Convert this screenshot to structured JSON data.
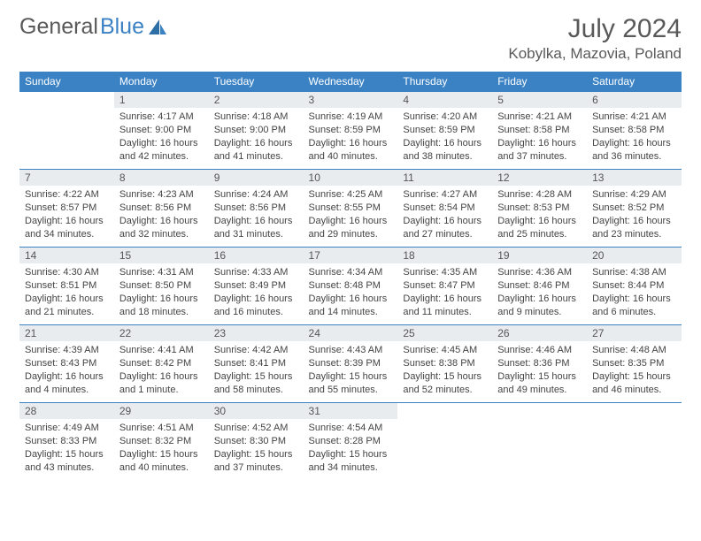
{
  "brand": {
    "word1": "General",
    "word2": "Blue"
  },
  "colors": {
    "header_bg": "#3b82c4",
    "header_text": "#ffffff",
    "daynum_bg": "#e9ecef",
    "border": "#3b82c4",
    "body_text": "#444444",
    "title_text": "#595959"
  },
  "title": "July 2024",
  "location": "Kobylka, Mazovia, Poland",
  "weekdays": [
    "Sunday",
    "Monday",
    "Tuesday",
    "Wednesday",
    "Thursday",
    "Friday",
    "Saturday"
  ],
  "first_weekday_index": 1,
  "days": [
    {
      "n": 1,
      "sunrise": "4:17 AM",
      "sunset": "9:00 PM",
      "daylight": "16 hours and 42 minutes."
    },
    {
      "n": 2,
      "sunrise": "4:18 AM",
      "sunset": "9:00 PM",
      "daylight": "16 hours and 41 minutes."
    },
    {
      "n": 3,
      "sunrise": "4:19 AM",
      "sunset": "8:59 PM",
      "daylight": "16 hours and 40 minutes."
    },
    {
      "n": 4,
      "sunrise": "4:20 AM",
      "sunset": "8:59 PM",
      "daylight": "16 hours and 38 minutes."
    },
    {
      "n": 5,
      "sunrise": "4:21 AM",
      "sunset": "8:58 PM",
      "daylight": "16 hours and 37 minutes."
    },
    {
      "n": 6,
      "sunrise": "4:21 AM",
      "sunset": "8:58 PM",
      "daylight": "16 hours and 36 minutes."
    },
    {
      "n": 7,
      "sunrise": "4:22 AM",
      "sunset": "8:57 PM",
      "daylight": "16 hours and 34 minutes."
    },
    {
      "n": 8,
      "sunrise": "4:23 AM",
      "sunset": "8:56 PM",
      "daylight": "16 hours and 32 minutes."
    },
    {
      "n": 9,
      "sunrise": "4:24 AM",
      "sunset": "8:56 PM",
      "daylight": "16 hours and 31 minutes."
    },
    {
      "n": 10,
      "sunrise": "4:25 AM",
      "sunset": "8:55 PM",
      "daylight": "16 hours and 29 minutes."
    },
    {
      "n": 11,
      "sunrise": "4:27 AM",
      "sunset": "8:54 PM",
      "daylight": "16 hours and 27 minutes."
    },
    {
      "n": 12,
      "sunrise": "4:28 AM",
      "sunset": "8:53 PM",
      "daylight": "16 hours and 25 minutes."
    },
    {
      "n": 13,
      "sunrise": "4:29 AM",
      "sunset": "8:52 PM",
      "daylight": "16 hours and 23 minutes."
    },
    {
      "n": 14,
      "sunrise": "4:30 AM",
      "sunset": "8:51 PM",
      "daylight": "16 hours and 21 minutes."
    },
    {
      "n": 15,
      "sunrise": "4:31 AM",
      "sunset": "8:50 PM",
      "daylight": "16 hours and 18 minutes."
    },
    {
      "n": 16,
      "sunrise": "4:33 AM",
      "sunset": "8:49 PM",
      "daylight": "16 hours and 16 minutes."
    },
    {
      "n": 17,
      "sunrise": "4:34 AM",
      "sunset": "8:48 PM",
      "daylight": "16 hours and 14 minutes."
    },
    {
      "n": 18,
      "sunrise": "4:35 AM",
      "sunset": "8:47 PM",
      "daylight": "16 hours and 11 minutes."
    },
    {
      "n": 19,
      "sunrise": "4:36 AM",
      "sunset": "8:46 PM",
      "daylight": "16 hours and 9 minutes."
    },
    {
      "n": 20,
      "sunrise": "4:38 AM",
      "sunset": "8:44 PM",
      "daylight": "16 hours and 6 minutes."
    },
    {
      "n": 21,
      "sunrise": "4:39 AM",
      "sunset": "8:43 PM",
      "daylight": "16 hours and 4 minutes."
    },
    {
      "n": 22,
      "sunrise": "4:41 AM",
      "sunset": "8:42 PM",
      "daylight": "16 hours and 1 minute."
    },
    {
      "n": 23,
      "sunrise": "4:42 AM",
      "sunset": "8:41 PM",
      "daylight": "15 hours and 58 minutes."
    },
    {
      "n": 24,
      "sunrise": "4:43 AM",
      "sunset": "8:39 PM",
      "daylight": "15 hours and 55 minutes."
    },
    {
      "n": 25,
      "sunrise": "4:45 AM",
      "sunset": "8:38 PM",
      "daylight": "15 hours and 52 minutes."
    },
    {
      "n": 26,
      "sunrise": "4:46 AM",
      "sunset": "8:36 PM",
      "daylight": "15 hours and 49 minutes."
    },
    {
      "n": 27,
      "sunrise": "4:48 AM",
      "sunset": "8:35 PM",
      "daylight": "15 hours and 46 minutes."
    },
    {
      "n": 28,
      "sunrise": "4:49 AM",
      "sunset": "8:33 PM",
      "daylight": "15 hours and 43 minutes."
    },
    {
      "n": 29,
      "sunrise": "4:51 AM",
      "sunset": "8:32 PM",
      "daylight": "15 hours and 40 minutes."
    },
    {
      "n": 30,
      "sunrise": "4:52 AM",
      "sunset": "8:30 PM",
      "daylight": "15 hours and 37 minutes."
    },
    {
      "n": 31,
      "sunrise": "4:54 AM",
      "sunset": "8:28 PM",
      "daylight": "15 hours and 34 minutes."
    }
  ],
  "labels": {
    "sunrise": "Sunrise:",
    "sunset": "Sunset:",
    "daylight": "Daylight:"
  }
}
